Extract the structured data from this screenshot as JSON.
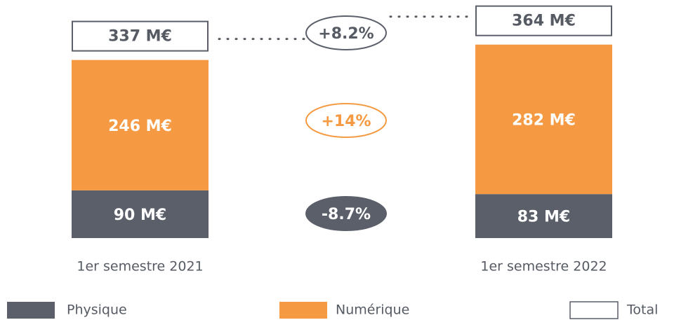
{
  "chart_data": {
    "type": "stacked_bar",
    "categories": [
      "1er semestre 2021",
      "1er semestre 2022"
    ],
    "series": [
      {
        "name": "Physique",
        "color": "#5a5f69",
        "values": [
          90,
          83
        ],
        "value_labels": [
          "90 M€",
          "83 M€"
        ]
      },
      {
        "name": "Numérique",
        "color": "#f59a42",
        "values": [
          246,
          282
        ],
        "value_labels": [
          "246 M€",
          "282 M€"
        ]
      }
    ],
    "totals": {
      "name": "Total",
      "values": [
        337,
        364
      ],
      "value_labels": [
        "337 M€",
        "364 M€"
      ]
    },
    "annotations": [
      {
        "text": "+8.2%",
        "value": 8.2,
        "target": "Total"
      },
      {
        "text": "+14%",
        "value": 14,
        "target": "Numérique"
      },
      {
        "text": "-8.7%",
        "value": -8.7,
        "target": "Physique"
      }
    ]
  }
}
